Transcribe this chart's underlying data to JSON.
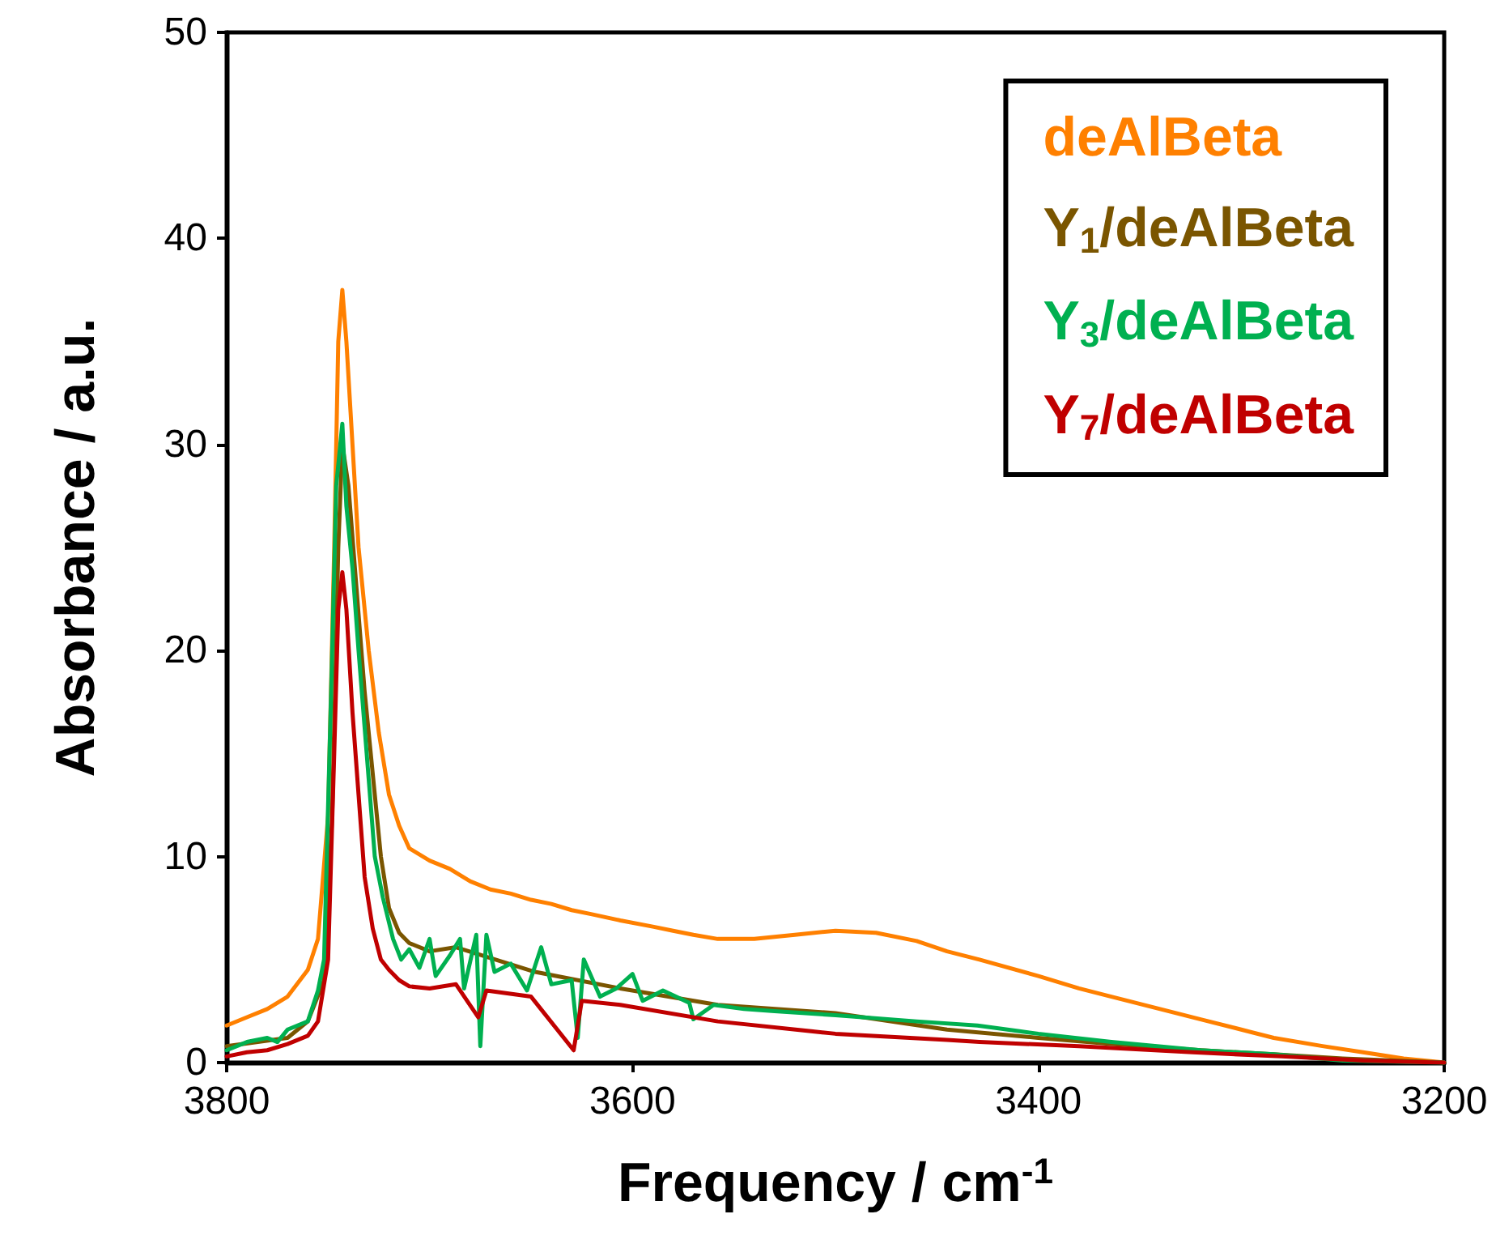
{
  "chart_data": {
    "type": "line",
    "xlabel": "Frequency / cm$^{-1}$",
    "ylabel": "Absorbance / a.u.",
    "xlim": [
      3800,
      3200
    ],
    "xticks": [
      3800,
      3600,
      3400,
      3200
    ],
    "ylim": [
      0,
      50
    ],
    "yticks": [
      0,
      10,
      20,
      30,
      40,
      50
    ],
    "grid": false,
    "legend": "top right",
    "marker": "none",
    "line_style": "solid",
    "series": [
      {
        "name": "deAlBeta",
        "color": "#ff8000",
        "x": [
          3800,
          3790,
          3780,
          3770,
          3760,
          3755,
          3750,
          3747,
          3745,
          3743,
          3741,
          3738,
          3735,
          3730,
          3725,
          3720,
          3715,
          3710,
          3700,
          3690,
          3680,
          3670,
          3660,
          3650,
          3640,
          3630,
          3620,
          3606,
          3590,
          3580,
          3570,
          3558,
          3540,
          3520,
          3500,
          3480,
          3460,
          3445,
          3429,
          3400,
          3380,
          3364,
          3340,
          3320,
          3300,
          3284,
          3260,
          3240,
          3220,
          3200
        ],
        "values": [
          1.8,
          2.2,
          2.6,
          3.2,
          4.5,
          6,
          12,
          25,
          35,
          37.5,
          35,
          30,
          25,
          20,
          16,
          13,
          11.5,
          10.4,
          9.8,
          9.4,
          8.8,
          8.4,
          8.2,
          7.9,
          7.7,
          7.4,
          7.2,
          6.9,
          6.6,
          6.4,
          6.2,
          6.0,
          6.0,
          6.2,
          6.4,
          6.3,
          5.9,
          5.4,
          5.0,
          4.2,
          3.6,
          3.2,
          2.6,
          2.1,
          1.6,
          1.2,
          0.8,
          0.5,
          0.2,
          0
        ]
      },
      {
        "name": "Y$_{1}$/deAlBeta",
        "color": "#7a5500",
        "x": [
          3800,
          3770,
          3760,
          3752,
          3748,
          3745,
          3743,
          3740,
          3736,
          3732,
          3728,
          3724,
          3720,
          3715,
          3710,
          3700,
          3687,
          3648,
          3606,
          3558,
          3500,
          3445,
          3400,
          3364,
          3320,
          3284,
          3250,
          3200
        ],
        "values": [
          0.8,
          1.2,
          2,
          4,
          12,
          25,
          30,
          28,
          23,
          18,
          14,
          10,
          7.5,
          6.3,
          5.8,
          5.4,
          5.6,
          4.4,
          3.6,
          2.8,
          2.4,
          1.6,
          1.2,
          0.9,
          0.6,
          0.4,
          0.2,
          0
        ]
      },
      {
        "name": "Y$_{3}$/deAlBeta",
        "color": "#00b050",
        "x": [
          3800,
          3790,
          3780,
          3775,
          3770,
          3760,
          3755,
          3752,
          3748,
          3746,
          3743,
          3741,
          3738,
          3735,
          3731,
          3727,
          3723,
          3718,
          3714,
          3710,
          3705,
          3700,
          3697,
          3690,
          3685,
          3683,
          3677,
          3675,
          3672,
          3668,
          3660,
          3652,
          3645,
          3640,
          3630,
          3627,
          3624,
          3616,
          3608,
          3600,
          3595,
          3585,
          3572,
          3570,
          3560,
          3545,
          3530,
          3500,
          3460,
          3430,
          3400,
          3364,
          3320,
          3284,
          3250,
          3200
        ],
        "values": [
          0.6,
          1.0,
          1.2,
          1.0,
          1.6,
          2.0,
          3.5,
          5,
          20,
          28,
          31,
          27,
          24,
          20,
          15,
          10,
          8,
          6,
          5,
          5.5,
          4.6,
          6,
          4.2,
          5.2,
          6,
          3.6,
          6.2,
          0.8,
          6.2,
          4.4,
          4.8,
          3.5,
          5.6,
          3.8,
          4.0,
          1.2,
          5.0,
          3.2,
          3.6,
          4.3,
          3.0,
          3.5,
          2.9,
          2.1,
          2.8,
          2.6,
          2.5,
          2.3,
          2.0,
          1.8,
          1.4,
          1.0,
          0.6,
          0.4,
          0.1,
          0
        ]
      },
      {
        "name": "Y$_{7}$/deAlBeta",
        "color": "#c00000",
        "x": [
          3800,
          3790,
          3780,
          3770,
          3760,
          3755,
          3750,
          3747,
          3745,
          3743,
          3741,
          3738,
          3735,
          3732,
          3728,
          3724,
          3720,
          3715,
          3710,
          3700,
          3687,
          3676,
          3672,
          3650,
          3629,
          3625,
          3606,
          3558,
          3500,
          3445,
          3429,
          3380,
          3324,
          3280,
          3240,
          3200
        ],
        "values": [
          0.3,
          0.5,
          0.6,
          0.9,
          1.3,
          2,
          5,
          15,
          22,
          23.8,
          22,
          17,
          13,
          9,
          6.5,
          5,
          4.5,
          4,
          3.7,
          3.6,
          3.8,
          2.2,
          3.5,
          3.2,
          0.6,
          3.0,
          2.8,
          2.0,
          1.4,
          1.1,
          1.0,
          0.8,
          0.5,
          0.3,
          0.1,
          0
        ]
      }
    ]
  }
}
